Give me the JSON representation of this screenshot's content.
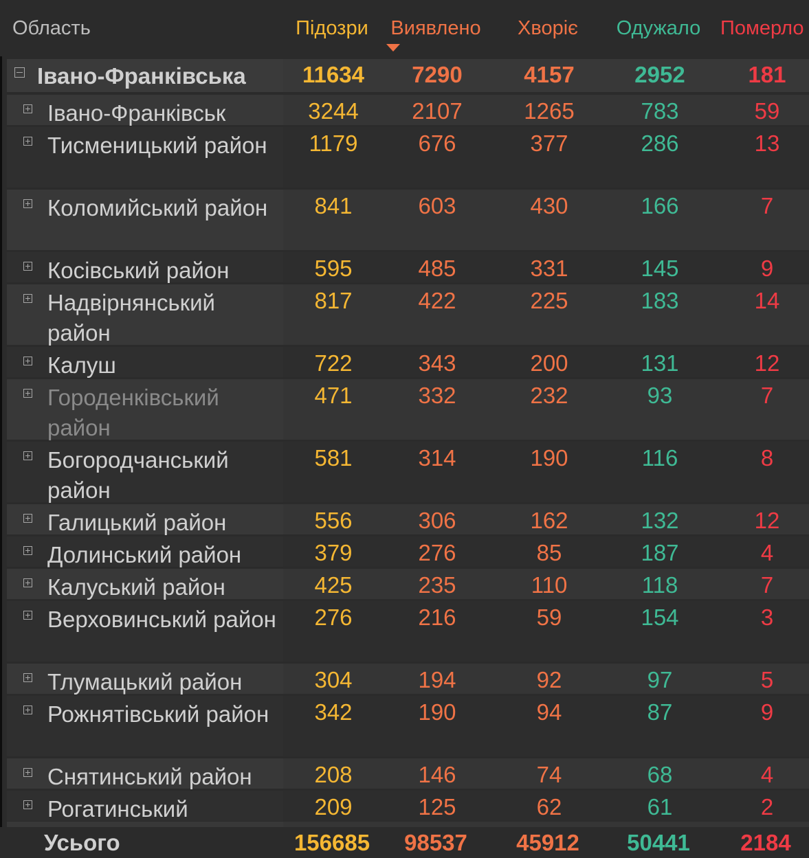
{
  "header": {
    "area": "Область",
    "suspected": "Підозри",
    "detected": "Виявлено",
    "sick": "Хворіє",
    "recovered": "Одужало",
    "died": "Померло"
  },
  "region": {
    "name": "Івано-Франківська",
    "suspected": "11634",
    "detected": "7290",
    "sick": "4157",
    "recovered": "2952",
    "died": "181"
  },
  "rows": [
    {
      "name": "Івано-Франківськ",
      "suspected": "3244",
      "detected": "2107",
      "sick": "1265",
      "recovered": "783",
      "died": "59"
    },
    {
      "name": "Тисменицький район",
      "suspected": "1179",
      "detected": "676",
      "sick": "377",
      "recovered": "286",
      "died": "13"
    },
    {
      "name": "Коломийський район",
      "suspected": "841",
      "detected": "603",
      "sick": "430",
      "recovered": "166",
      "died": "7"
    },
    {
      "name": "Косівський район",
      "suspected": "595",
      "detected": "485",
      "sick": "331",
      "recovered": "145",
      "died": "9"
    },
    {
      "name": "Надвірнянський район",
      "suspected": "817",
      "detected": "422",
      "sick": "225",
      "recovered": "183",
      "died": "14"
    },
    {
      "name": "Калуш",
      "suspected": "722",
      "detected": "343",
      "sick": "200",
      "recovered": "131",
      "died": "12"
    },
    {
      "name": "Городенківський район",
      "suspected": "471",
      "detected": "332",
      "sick": "232",
      "recovered": "93",
      "died": "7"
    },
    {
      "name": "Богородчанський район",
      "suspected": "581",
      "detected": "314",
      "sick": "190",
      "recovered": "116",
      "died": "8"
    },
    {
      "name": "Галицький район",
      "suspected": "556",
      "detected": "306",
      "sick": "162",
      "recovered": "132",
      "died": "12"
    },
    {
      "name": "Долинський район",
      "suspected": "379",
      "detected": "276",
      "sick": "85",
      "recovered": "187",
      "died": "4"
    },
    {
      "name": "Калуський район",
      "suspected": "425",
      "detected": "235",
      "sick": "110",
      "recovered": "118",
      "died": "7"
    },
    {
      "name": "Верховинський район",
      "suspected": "276",
      "detected": "216",
      "sick": "59",
      "recovered": "154",
      "died": "3"
    },
    {
      "name": "Тлумацький район",
      "suspected": "304",
      "detected": "194",
      "sick": "92",
      "recovered": "97",
      "died": "5"
    },
    {
      "name": "Рожнятівський район",
      "suspected": "342",
      "detected": "190",
      "sick": "94",
      "recovered": "87",
      "died": "9"
    },
    {
      "name": "Снятинський район",
      "suspected": "208",
      "detected": "146",
      "sick": "74",
      "recovered": "68",
      "died": "4"
    },
    {
      "name": "Рогатинський",
      "suspected": "209",
      "detected": "125",
      "sick": "62",
      "recovered": "61",
      "died": "2"
    }
  ],
  "total": {
    "label": "Усього",
    "suspected": "156685",
    "detected": "98537",
    "sick": "45912",
    "recovered": "50441",
    "died": "2184"
  },
  "colors": {
    "suspected": "#f5b733",
    "detected": "#f07346",
    "recovered": "#3fba95",
    "died": "#ef3b45"
  }
}
